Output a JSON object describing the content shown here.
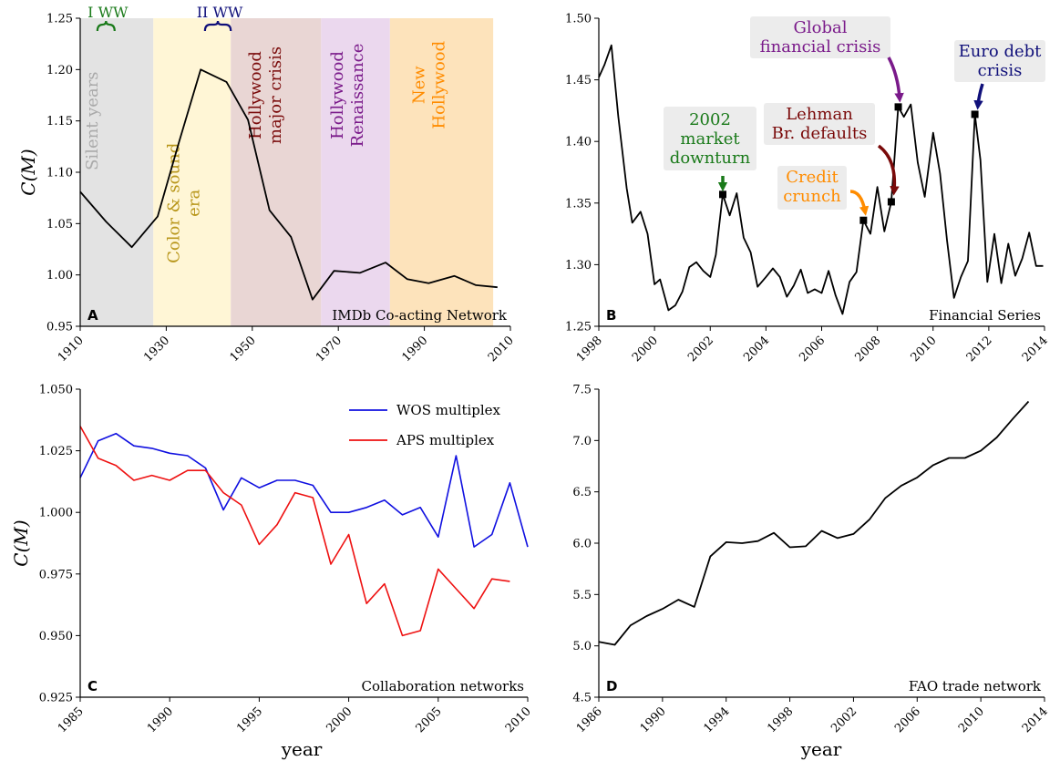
{
  "colors": {
    "line": "#000000",
    "wos": "#1010e0",
    "aps": "#ee1111",
    "green": "#1a7a1a",
    "navy": "#10107a",
    "darkred": "#7a0a0a",
    "purple": "#7a1a8a",
    "orange": "#ff8c00",
    "gray_text": "#aaaaaa",
    "gold_text": "#b8961a",
    "annotation_box": "#ececec"
  },
  "shared": {
    "xlabel": "year",
    "ylabel": "C(M)"
  },
  "chart_data": [
    {
      "id": "A",
      "type": "line",
      "panel_label": "A",
      "caption": "IMDb Co-acting Network",
      "ylabel": "C(M)",
      "xlim": [
        1910,
        2010
      ],
      "ylim": [
        0.95,
        1.25
      ],
      "xticks": [
        1910,
        1930,
        1950,
        1970,
        1990,
        2010
      ],
      "yticks": [
        "0.95",
        "1.00",
        "1.05",
        "1.10",
        "1.15",
        "1.20",
        "1.25"
      ],
      "x": [
        1910,
        1916,
        1922,
        1928,
        1933,
        1938,
        1944,
        1949,
        1954,
        1959,
        1964,
        1969,
        1975,
        1981,
        1986,
        1991,
        1997,
        2002,
        2007
      ],
      "y": [
        1.081,
        1.052,
        1.027,
        1.057,
        1.13,
        1.2,
        1.188,
        1.151,
        1.063,
        1.037,
        0.976,
        1.004,
        1.002,
        1.012,
        0.996,
        0.992,
        0.999,
        0.99,
        0.988
      ],
      "periods": [
        {
          "label": "Silent years",
          "start": 1910,
          "end": 1927,
          "fill": "#e3e3e3",
          "text_color": "#aaaaaa"
        },
        {
          "label": "Color & sound era",
          "start": 1927,
          "end": 1945,
          "fill": "#fff6d6",
          "text_color": "#b8961a"
        },
        {
          "label": "Hollywood major crisis",
          "start": 1945,
          "end": 1966,
          "fill": "#e9d6d4",
          "text_color": "#7a0a0a"
        },
        {
          "label": "Hollywood Renaissance",
          "start": 1966,
          "end": 1982,
          "fill": "#ebd8ee",
          "text_color": "#7a1a8a"
        },
        {
          "label": "New Hollywood",
          "start": 1982,
          "end": 2006,
          "fill": "#fde3bb",
          "text_color": "#ff8c00"
        }
      ],
      "wars": [
        {
          "label": "I WW",
          "start": 1914,
          "end": 1918,
          "color": "#1a7a1a"
        },
        {
          "label": "II WW",
          "start": 1939,
          "end": 1945,
          "color": "#10107a"
        }
      ]
    },
    {
      "id": "B",
      "type": "line",
      "panel_label": "B",
      "caption": "Financial Series",
      "xlim": [
        1998,
        2014
      ],
      "ylim": [
        1.25,
        1.5
      ],
      "xticks": [
        1998,
        2000,
        2002,
        2004,
        2006,
        2008,
        2010,
        2012,
        2014
      ],
      "yticks": [
        "1.25",
        "1.30",
        "1.35",
        "1.40",
        "1.45",
        "1.50"
      ],
      "x": [
        1998.0,
        1998.2,
        1998.45,
        1998.7,
        1999.0,
        1999.2,
        1999.5,
        1999.75,
        2000.0,
        2000.2,
        2000.5,
        2000.75,
        2001.0,
        2001.25,
        2001.5,
        2001.75,
        2002.0,
        2002.2,
        2002.45,
        2002.7,
        2002.95,
        2003.2,
        2003.45,
        2003.7,
        2004.0,
        2004.25,
        2004.5,
        2004.75,
        2005.0,
        2005.25,
        2005.5,
        2005.75,
        2006.0,
        2006.25,
        2006.5,
        2006.75,
        2007.0,
        2007.25,
        2007.5,
        2007.75,
        2008.0,
        2008.25,
        2008.5,
        2008.75,
        2008.95,
        2009.2,
        2009.45,
        2009.7,
        2010.0,
        2010.25,
        2010.5,
        2010.75,
        2011.0,
        2011.25,
        2011.5,
        2011.7,
        2011.95,
        2012.2,
        2012.45,
        2012.7,
        2012.95,
        2013.2,
        2013.45,
        2013.7,
        2013.95
      ],
      "y": [
        1.452,
        1.462,
        1.478,
        1.42,
        1.362,
        1.334,
        1.343,
        1.325,
        1.284,
        1.288,
        1.263,
        1.267,
        1.278,
        1.298,
        1.302,
        1.295,
        1.29,
        1.308,
        1.357,
        1.34,
        1.358,
        1.322,
        1.31,
        1.282,
        1.29,
        1.297,
        1.29,
        1.274,
        1.283,
        1.296,
        1.277,
        1.28,
        1.277,
        1.295,
        1.275,
        1.26,
        1.286,
        1.294,
        1.336,
        1.325,
        1.363,
        1.327,
        1.351,
        1.428,
        1.42,
        1.43,
        1.383,
        1.355,
        1.407,
        1.374,
        1.32,
        1.273,
        1.29,
        1.303,
        1.422,
        1.385,
        1.286,
        1.325,
        1.285,
        1.317,
        1.291,
        1.305,
        1.326,
        1.299,
        1.299
      ],
      "events": [
        {
          "label": "2002 market downturn",
          "x": 2002.45,
          "y": 1.357,
          "color": "#1a7a1a"
        },
        {
          "label": "Credit crunch",
          "x": 2007.5,
          "y": 1.336,
          "color": "#ff8c00"
        },
        {
          "label": "Lehman Br. defaults",
          "x": 2008.5,
          "y": 1.351,
          "color": "#7a0a0a"
        },
        {
          "label": "Global financial crisis",
          "x": 2008.75,
          "y": 1.428,
          "color": "#7a1a8a"
        },
        {
          "label": "Euro debt crisis",
          "x": 2011.5,
          "y": 1.422,
          "color": "#10107a"
        }
      ]
    },
    {
      "id": "C",
      "type": "line",
      "panel_label": "C",
      "caption": "Collaboration networks",
      "ylabel": "C(M)",
      "xlabel": "year",
      "xlim": [
        1985,
        2010
      ],
      "ylim": [
        0.925,
        1.05
      ],
      "xticks": [
        1985,
        1990,
        1995,
        2000,
        2005,
        2010
      ],
      "yticks": [
        "0.925",
        "0.950",
        "0.975",
        "1.000",
        "1.025",
        "1.050"
      ],
      "x": [
        1985,
        1986,
        1987,
        1988,
        1989,
        1990,
        1991,
        1992,
        1993,
        1994,
        1995,
        1996,
        1997,
        1998,
        1999,
        2000,
        2001,
        2002,
        2003,
        2004,
        2005,
        2006,
        2007,
        2008,
        2009,
        2010
      ],
      "series": [
        {
          "name": "WOS multiplex",
          "color": "#1010e0",
          "values": [
            1.014,
            1.029,
            1.032,
            1.027,
            1.026,
            1.024,
            1.023,
            1.018,
            1.001,
            1.014,
            1.01,
            1.013,
            1.013,
            1.011,
            1.0,
            1.0,
            1.002,
            1.005,
            0.999,
            1.002,
            0.99,
            1.023,
            0.986,
            0.991,
            1.012,
            0.986
          ]
        },
        {
          "name": "APS multiplex",
          "color": "#ee1111",
          "values": [
            1.035,
            1.022,
            1.019,
            1.013,
            1.015,
            1.013,
            1.017,
            1.017,
            1.008,
            1.003,
            0.987,
            0.995,
            1.008,
            1.006,
            0.979,
            0.991,
            0.963,
            0.971,
            0.95,
            0.952,
            0.977,
            0.969,
            0.961,
            0.973,
            0.972,
            null
          ]
        }
      ],
      "legend": "top-right"
    },
    {
      "id": "D",
      "type": "line",
      "panel_label": "D",
      "caption": "FAO trade network",
      "xlabel": "year",
      "xlim": [
        1986,
        2014
      ],
      "ylim": [
        4.5,
        7.5
      ],
      "xticks": [
        1986,
        1990,
        1994,
        1998,
        2002,
        2006,
        2010,
        2014
      ],
      "yticks": [
        "4.5",
        "5.0",
        "5.5",
        "6.0",
        "6.5",
        "7.0",
        "7.5"
      ],
      "x": [
        1986,
        1987,
        1988,
        1989,
        1990,
        1991,
        1992,
        1993,
        1994,
        1995,
        1996,
        1997,
        1998,
        1999,
        2000,
        2001,
        2002,
        2003,
        2004,
        2005,
        2006,
        2007,
        2008,
        2009,
        2010,
        2011,
        2012,
        2013
      ],
      "y": [
        5.04,
        5.01,
        5.2,
        5.29,
        5.36,
        5.45,
        5.38,
        5.87,
        6.01,
        6.0,
        6.02,
        6.1,
        5.96,
        5.97,
        6.12,
        6.05,
        6.09,
        6.23,
        6.44,
        6.56,
        6.64,
        6.76,
        6.83,
        6.83,
        6.9,
        7.03,
        7.21,
        7.38
      ]
    }
  ]
}
